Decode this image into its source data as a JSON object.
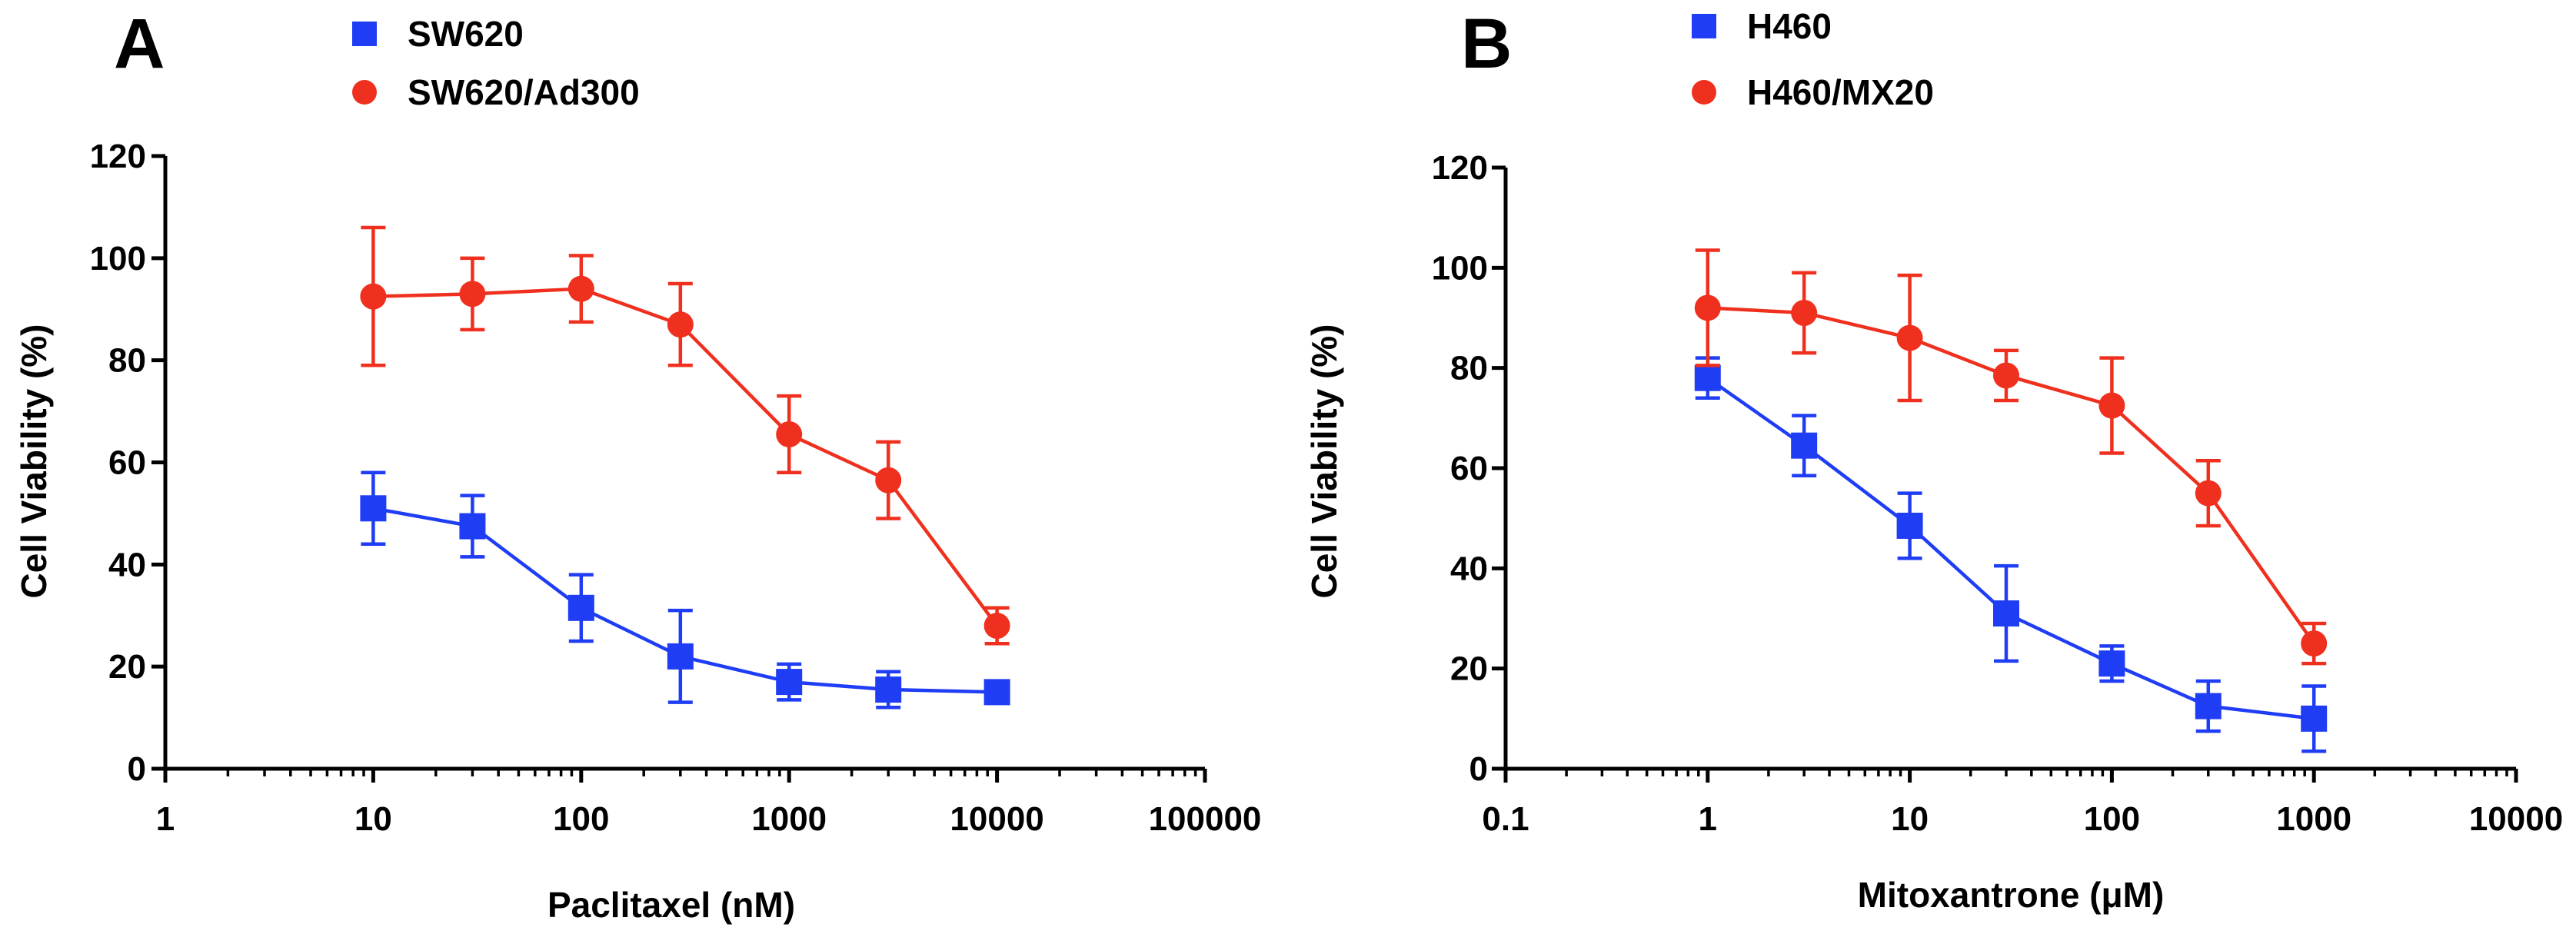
{
  "colors": {
    "blue": "#1f3df5",
    "red": "#f0301e",
    "axis": "#000000"
  },
  "chart_data": [
    {
      "type": "line",
      "panel": "A",
      "xscale": "log",
      "xlabel": "Paclitaxel (nM)",
      "ylabel": "Cell Viability (%)",
      "xlim": [
        1,
        100000
      ],
      "ylim": [
        0,
        120
      ],
      "xticks": [
        1,
        10,
        100,
        1000,
        10000,
        100000
      ],
      "xtick_labels": [
        "1",
        "10",
        "100",
        "1000",
        "10000",
        "100000"
      ],
      "yticks": [
        0,
        20,
        40,
        60,
        80,
        100,
        120
      ],
      "ytick_labels": [
        "0",
        "20",
        "40",
        "60",
        "80",
        "100",
        "120"
      ],
      "legend_position": "top",
      "series": [
        {
          "name": "SW620",
          "color": "#1f3df5",
          "marker": "square",
          "x": [
            10,
            30,
            100,
            300,
            1000,
            3000,
            10000
          ],
          "y": [
            51,
            47.5,
            31.5,
            22,
            17,
            15.5,
            15
          ],
          "err": [
            7,
            6,
            6.5,
            9,
            3.5,
            3.5,
            1.5
          ]
        },
        {
          "name": "SW620/Ad300",
          "color": "#f0301e",
          "marker": "circle",
          "x": [
            10,
            30,
            100,
            300,
            1000,
            3000,
            10000
          ],
          "y": [
            92.5,
            93,
            94,
            87,
            65.5,
            56.5,
            28
          ],
          "err": [
            13.5,
            7,
            6.5,
            8,
            7.5,
            7.5,
            3.5
          ]
        }
      ]
    },
    {
      "type": "line",
      "panel": "B",
      "xscale": "log",
      "xlabel": "Mitoxantrone (μM)",
      "ylabel": "Cell Viability (%)",
      "xlim": [
        0.1,
        10000
      ],
      "ylim": [
        0,
        120
      ],
      "xticks": [
        0.1,
        1,
        10,
        100,
        1000,
        10000
      ],
      "xtick_labels": [
        "0.1",
        "1",
        "10",
        "100",
        "1000",
        "10000"
      ],
      "yticks": [
        0,
        20,
        40,
        60,
        80,
        100,
        120
      ],
      "ytick_labels": [
        "0",
        "20",
        "40",
        "60",
        "80",
        "100",
        "120"
      ],
      "legend_position": "top",
      "series": [
        {
          "name": "H460",
          "color": "#1f3df5",
          "marker": "square",
          "x": [
            1,
            3,
            10,
            30,
            100,
            300,
            1000
          ],
          "y": [
            78,
            64.5,
            48.5,
            31,
            21,
            12.5,
            10
          ],
          "err": [
            4,
            6,
            6.5,
            9.5,
            3.5,
            5,
            6.5
          ]
        },
        {
          "name": "H460/MX20",
          "color": "#f0301e",
          "marker": "circle",
          "x": [
            1,
            3,
            10,
            30,
            100,
            300,
            1000
          ],
          "y": [
            92,
            91,
            86,
            78.5,
            72.5,
            55,
            25
          ],
          "err": [
            11.5,
            8,
            12.5,
            5,
            9.5,
            6.5,
            4
          ]
        }
      ]
    }
  ]
}
